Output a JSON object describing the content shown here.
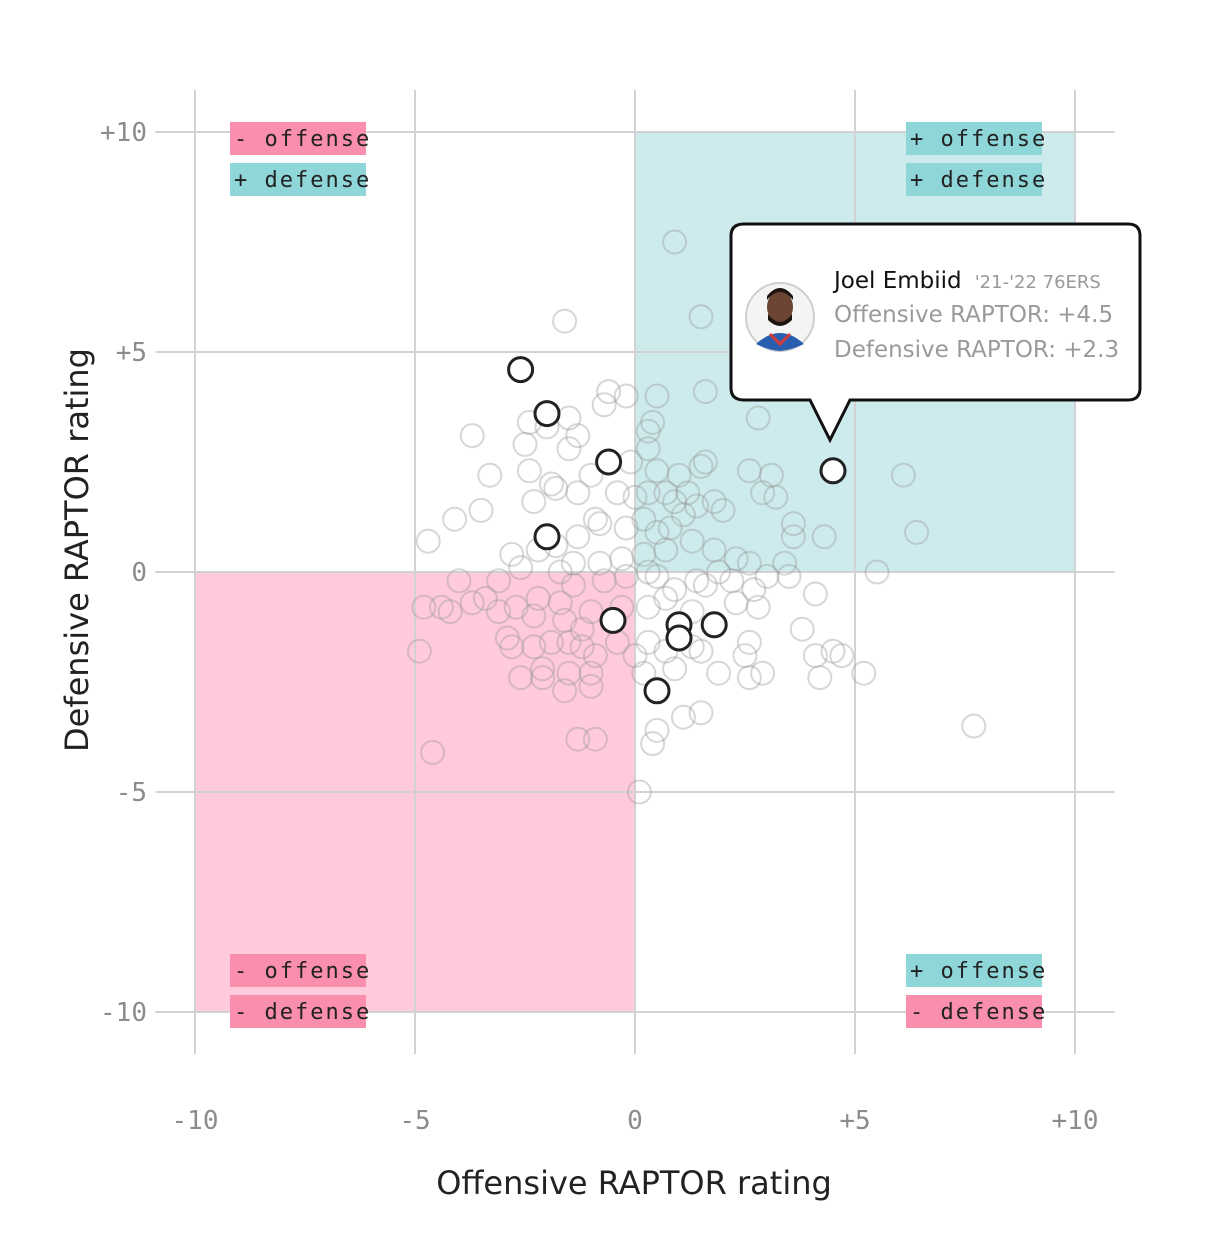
{
  "chart_data": {
    "type": "scatter",
    "xlabel": "Offensive RAPTOR rating",
    "ylabel": "Defensive RAPTOR rating",
    "xlim": [
      -11,
      11
    ],
    "ylim": [
      -11,
      11
    ],
    "x_ticks": [
      {
        "value": -10,
        "label": "-10"
      },
      {
        "value": -5,
        "label": "-5"
      },
      {
        "value": 0,
        "label": "0"
      },
      {
        "value": 5,
        "label": "+5"
      },
      {
        "value": 10,
        "label": "+10"
      }
    ],
    "y_ticks": [
      {
        "value": 10,
        "label": "+10"
      },
      {
        "value": 5,
        "label": "+5"
      },
      {
        "value": 0,
        "label": "0"
      },
      {
        "value": -5,
        "label": "-5"
      },
      {
        "value": -10,
        "label": "-10"
      }
    ],
    "grid": true,
    "quadrant_colors": {
      "positive_both": "#cdebed",
      "negative_both": "#ffcadb",
      "pink_tag": "#f98fac",
      "teal_tag": "#8fd6d8"
    },
    "quadrant_labels": [
      {
        "position": "top-left",
        "lines": [
          {
            "text": "- offense",
            "tone": "pink"
          },
          {
            "text": "+ defense",
            "tone": "teal"
          }
        ]
      },
      {
        "position": "top-right",
        "lines": [
          {
            "text": "+ offense",
            "tone": "teal"
          },
          {
            "text": "+ defense",
            "tone": "teal"
          }
        ]
      },
      {
        "position": "bottom-left",
        "lines": [
          {
            "text": "- offense",
            "tone": "pink"
          },
          {
            "text": "- defense",
            "tone": "pink"
          }
        ]
      },
      {
        "position": "bottom-right",
        "lines": [
          {
            "text": "+ offense",
            "tone": "teal"
          },
          {
            "text": "- defense",
            "tone": "pink"
          }
        ]
      }
    ],
    "highlighted_points": [
      [
        -2.6,
        4.6
      ],
      [
        -2.0,
        3.6
      ],
      [
        -0.6,
        2.5
      ],
      [
        -2.0,
        0.8
      ],
      [
        -0.5,
        -1.1
      ],
      [
        1.0,
        -1.2
      ],
      [
        1.8,
        -1.2
      ],
      [
        1.0,
        -1.5
      ],
      [
        0.5,
        -2.7
      ],
      [
        4.5,
        2.3
      ]
    ],
    "background_points": [
      [
        0.9,
        7.5
      ],
      [
        -1.6,
        5.7
      ],
      [
        1.5,
        5.8
      ],
      [
        -0.6,
        4.1
      ],
      [
        -0.2,
        4.0
      ],
      [
        -0.7,
        3.8
      ],
      [
        0.5,
        4.0
      ],
      [
        -3.7,
        3.1
      ],
      [
        -2.4,
        3.4
      ],
      [
        -2.0,
        3.3
      ],
      [
        -1.5,
        3.5
      ],
      [
        -1.3,
        3.1
      ],
      [
        -2.5,
        2.9
      ],
      [
        -1.5,
        2.8
      ],
      [
        0.4,
        3.4
      ],
      [
        0.3,
        3.2
      ],
      [
        0.3,
        2.8
      ],
      [
        -3.3,
        2.2
      ],
      [
        -2.4,
        2.3
      ],
      [
        -1.9,
        2.0
      ],
      [
        -1.0,
        2.2
      ],
      [
        -0.1,
        2.5
      ],
      [
        0.5,
        2.3
      ],
      [
        1.0,
        2.2
      ],
      [
        1.5,
        2.4
      ],
      [
        1.6,
        2.5
      ],
      [
        2.6,
        2.3
      ],
      [
        3.1,
        2.2
      ],
      [
        6.1,
        2.2
      ],
      [
        -4.1,
        1.2
      ],
      [
        -3.5,
        1.4
      ],
      [
        -2.3,
        1.6
      ],
      [
        -1.8,
        1.9
      ],
      [
        -1.3,
        1.8
      ],
      [
        -0.9,
        1.2
      ],
      [
        -0.4,
        1.8
      ],
      [
        0.0,
        1.7
      ],
      [
        0.3,
        1.8
      ],
      [
        0.7,
        1.8
      ],
      [
        0.9,
        1.6
      ],
      [
        1.1,
        1.3
      ],
      [
        1.4,
        1.5
      ],
      [
        1.8,
        1.6
      ],
      [
        2.0,
        1.4
      ],
      [
        2.9,
        1.8
      ],
      [
        3.2,
        1.7
      ],
      [
        3.6,
        1.1
      ],
      [
        -4.7,
        0.7
      ],
      [
        -2.8,
        0.4
      ],
      [
        -1.8,
        0.6
      ],
      [
        -1.3,
        0.8
      ],
      [
        -0.8,
        1.1
      ],
      [
        -0.2,
        1.0
      ],
      [
        0.2,
        1.2
      ],
      [
        0.5,
        0.9
      ],
      [
        0.8,
        1.0
      ],
      [
        1.3,
        0.7
      ],
      [
        0.7,
        0.5
      ],
      [
        0.2,
        0.4
      ],
      [
        -0.3,
        0.3
      ],
      [
        -0.8,
        0.2
      ],
      [
        -1.4,
        0.2
      ],
      [
        -2.2,
        0.5
      ],
      [
        3.6,
        0.8
      ],
      [
        4.3,
        0.8
      ],
      [
        6.4,
        0.9
      ],
      [
        1.8,
        0.5
      ],
      [
        2.3,
        0.3
      ],
      [
        2.6,
        0.2
      ],
      [
        3.4,
        0.2
      ],
      [
        3.5,
        -0.1
      ],
      [
        5.5,
        0.0
      ],
      [
        -4.0,
        -0.2
      ],
      [
        -3.1,
        -0.2
      ],
      [
        -2.6,
        0.1
      ],
      [
        -1.7,
        0.0
      ],
      [
        -1.4,
        -0.3
      ],
      [
        -0.7,
        -0.2
      ],
      [
        -0.2,
        -0.1
      ],
      [
        0.3,
        0.0
      ],
      [
        0.5,
        -0.1
      ],
      [
        0.9,
        -0.4
      ],
      [
        1.4,
        -0.2
      ],
      [
        1.6,
        -0.3
      ],
      [
        1.9,
        0.0
      ],
      [
        2.2,
        -0.2
      ],
      [
        2.7,
        -0.4
      ],
      [
        3.0,
        -0.1
      ],
      [
        -4.4,
        -0.8
      ],
      [
        -3.7,
        -0.7
      ],
      [
        -3.1,
        -0.9
      ],
      [
        -2.7,
        -0.8
      ],
      [
        -2.2,
        -0.6
      ],
      [
        -1.7,
        -0.7
      ],
      [
        -1.0,
        -0.9
      ],
      [
        -0.3,
        -0.8
      ],
      [
        0.3,
        -0.8
      ],
      [
        0.7,
        -0.6
      ],
      [
        1.3,
        -0.9
      ],
      [
        2.3,
        -0.7
      ],
      [
        2.8,
        -0.8
      ],
      [
        4.1,
        -0.5
      ],
      [
        -4.8,
        -0.8
      ],
      [
        -4.2,
        -0.9
      ],
      [
        -3.4,
        -0.6
      ],
      [
        -2.3,
        -1.0
      ],
      [
        -1.6,
        -1.1
      ],
      [
        -1.2,
        -1.3
      ],
      [
        3.8,
        -1.3
      ],
      [
        -2.9,
        -1.5
      ],
      [
        -1.9,
        -1.6
      ],
      [
        -1.2,
        -1.7
      ],
      [
        -0.4,
        -1.6
      ],
      [
        0.3,
        -1.6
      ],
      [
        0.7,
        -1.8
      ],
      [
        1.3,
        -1.7
      ],
      [
        2.6,
        -1.6
      ],
      [
        -4.9,
        -1.8
      ],
      [
        -2.8,
        -1.7
      ],
      [
        -2.3,
        -1.7
      ],
      [
        -1.5,
        -1.6
      ],
      [
        -0.9,
        -1.9
      ],
      [
        0.0,
        -1.9
      ],
      [
        1.5,
        -1.8
      ],
      [
        2.5,
        -1.9
      ],
      [
        4.1,
        -1.9
      ],
      [
        4.5,
        -1.8
      ],
      [
        4.7,
        -1.9
      ],
      [
        -2.6,
        -2.4
      ],
      [
        -2.1,
        -2.2
      ],
      [
        -1.5,
        -2.3
      ],
      [
        -1.0,
        -2.3
      ],
      [
        0.2,
        -2.3
      ],
      [
        0.9,
        -2.2
      ],
      [
        1.9,
        -2.3
      ],
      [
        2.6,
        -2.4
      ],
      [
        2.9,
        -2.3
      ],
      [
        4.2,
        -2.4
      ],
      [
        5.2,
        -2.3
      ],
      [
        -2.1,
        -2.4
      ],
      [
        -1.6,
        -2.7
      ],
      [
        -1.0,
        -2.6
      ],
      [
        1.1,
        -3.3
      ],
      [
        1.5,
        -3.2
      ],
      [
        -1.3,
        -3.8
      ],
      [
        -0.9,
        -3.8
      ],
      [
        0.5,
        -3.6
      ],
      [
        0.4,
        -3.9
      ],
      [
        7.7,
        -3.5
      ],
      [
        -4.6,
        -4.1
      ],
      [
        0.1,
        -5.0
      ],
      [
        1.6,
        4.1
      ],
      [
        2.8,
        3.5
      ],
      [
        1.2,
        1.8
      ]
    ]
  },
  "tooltip": {
    "name": "Joel Embiid",
    "team": "'21-'22 76ERS",
    "offense": "Offensive RAPTOR: +4.5",
    "defense": "Defensive RAPTOR: +2.3",
    "avatar_name": "player-headshot"
  }
}
